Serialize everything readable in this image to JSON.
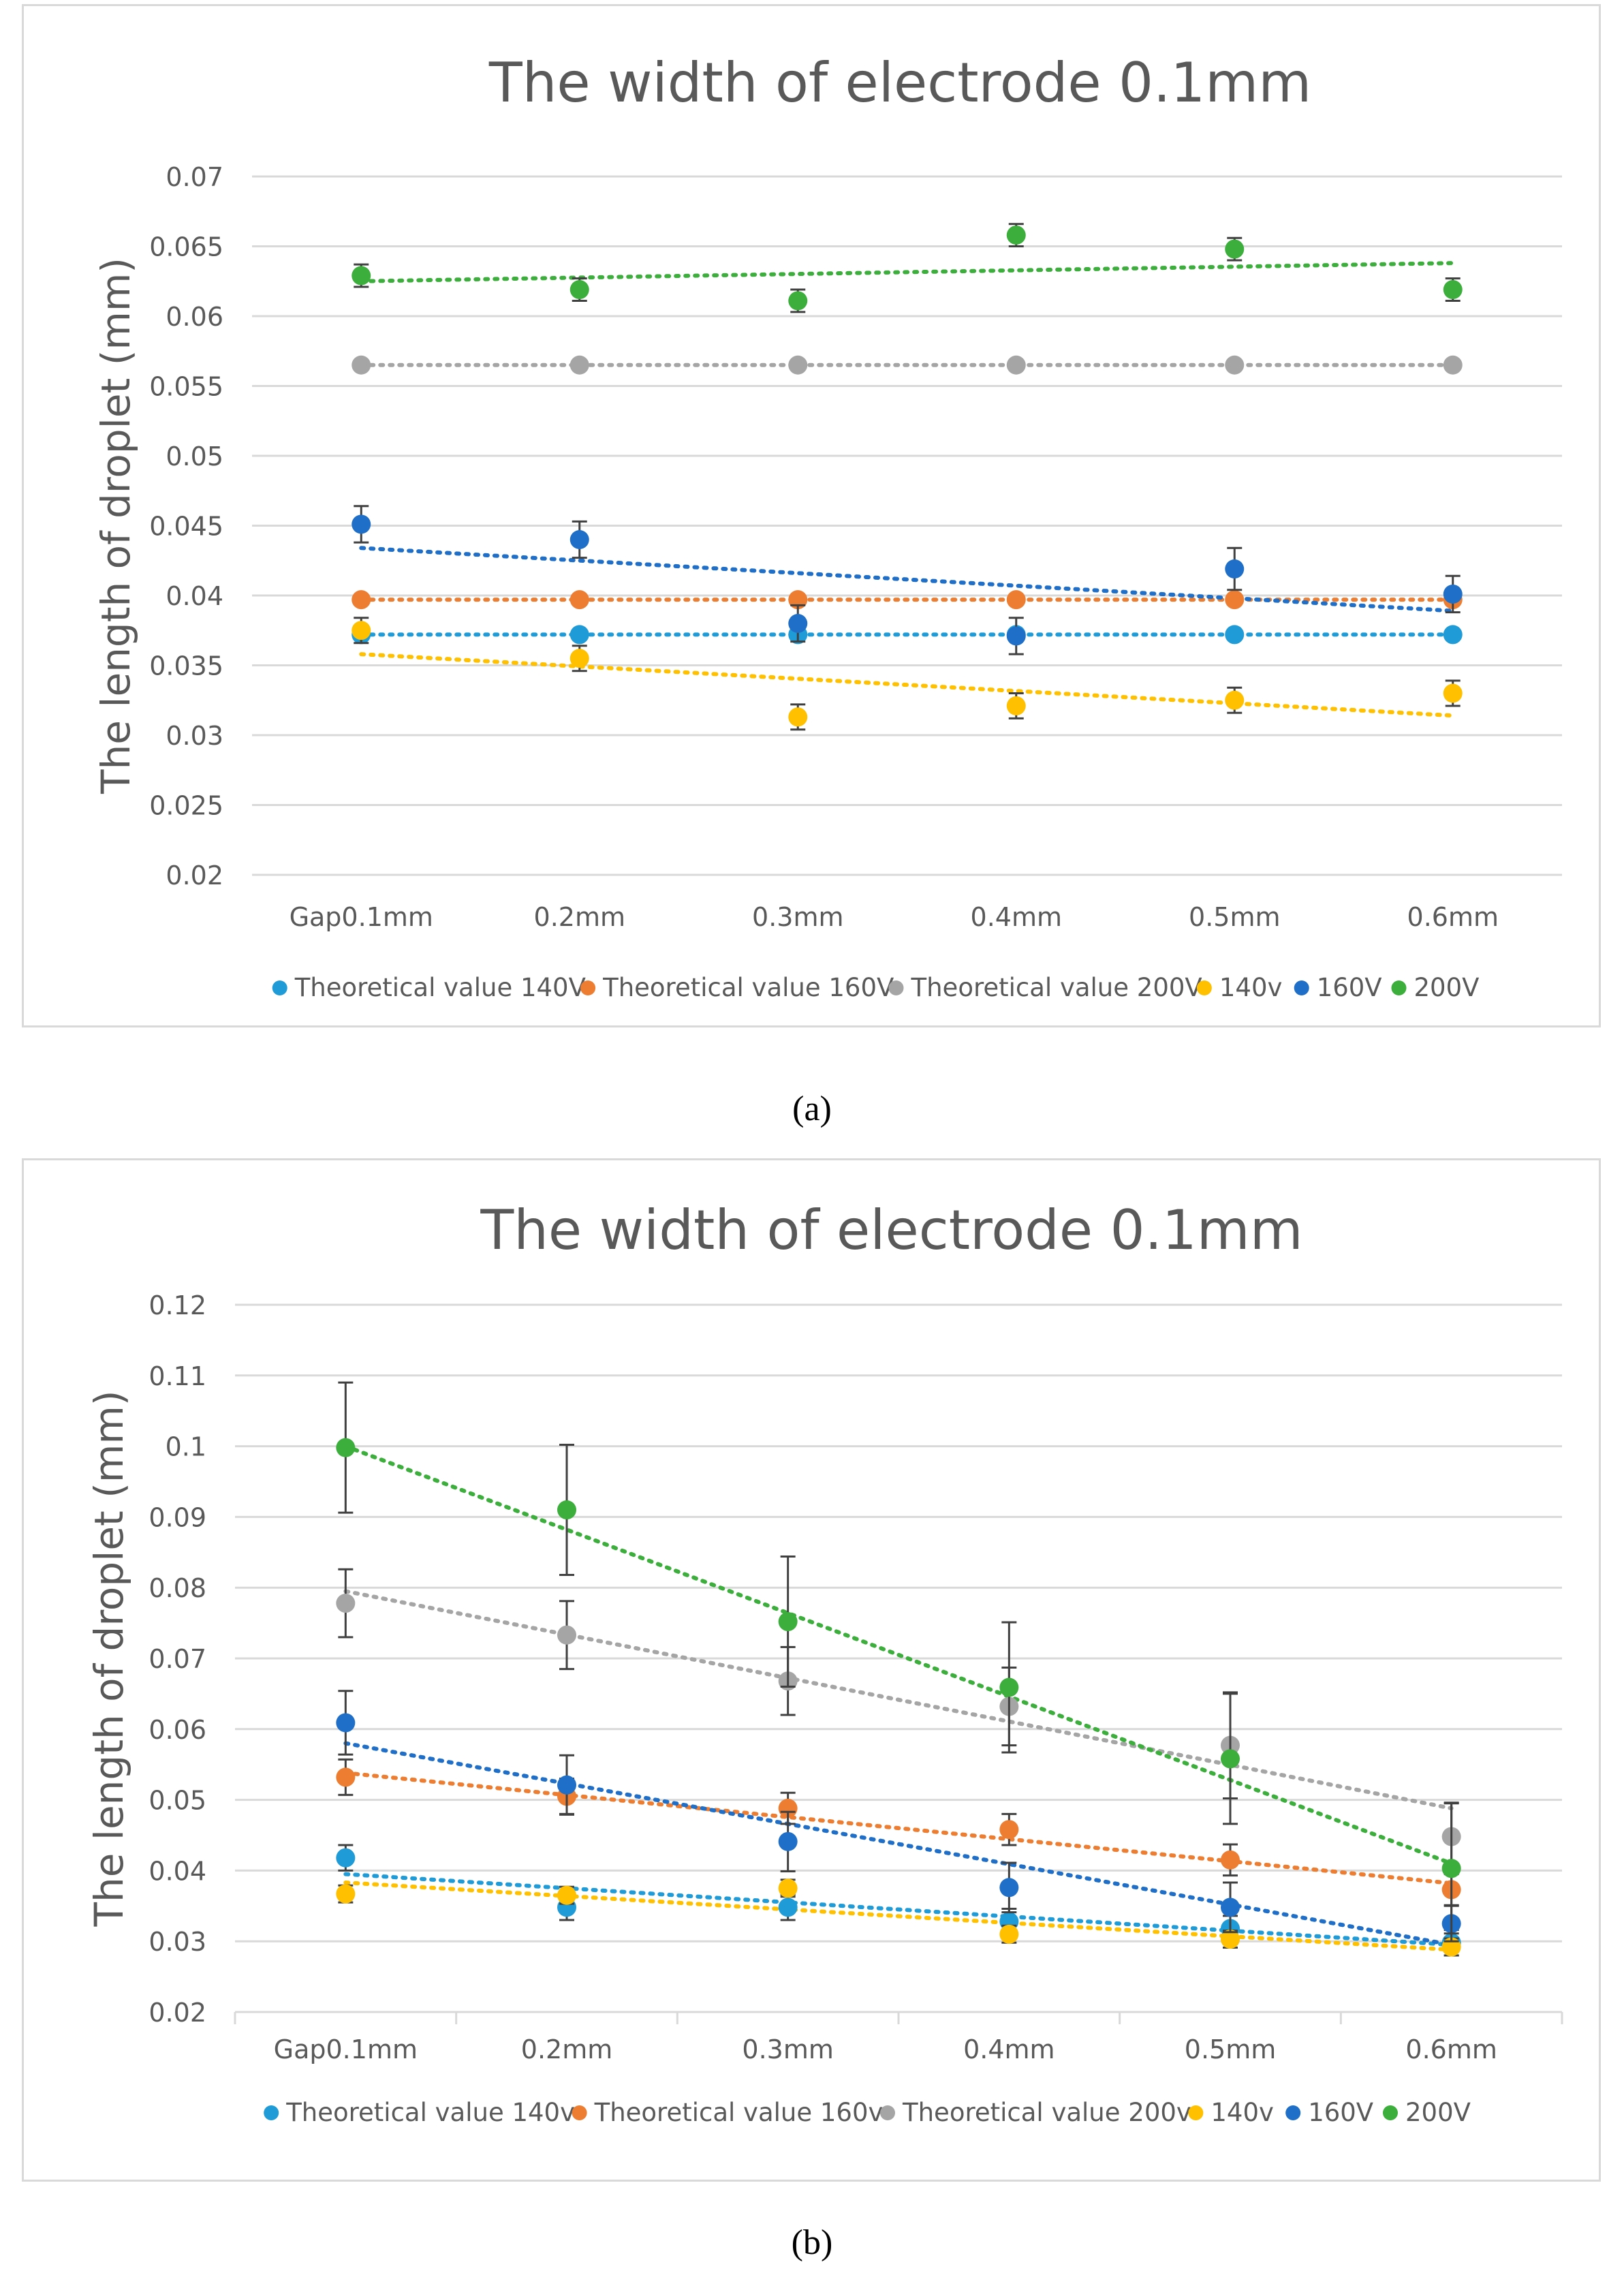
{
  "chart_data": [
    {
      "type": "scatter",
      "panel": "a",
      "caption": "(a)",
      "title": "The width of electrode 0.1mm",
      "xlabel": "",
      "ylabel": "The length of droplet (mm)",
      "categories": [
        "Gap0.1mm",
        "0.2mm",
        "0.3mm",
        "0.4mm",
        "0.5mm",
        "0.6mm"
      ],
      "ylim": [
        0.02,
        0.07
      ],
      "yticks": [
        0.02,
        0.025,
        0.03,
        0.035,
        0.04,
        0.045,
        0.05,
        0.055,
        0.06,
        0.065,
        0.07
      ],
      "ytick_labels": [
        "0.02",
        "0.025",
        "0.03",
        "0.035",
        "0.04",
        "0.045",
        "0.05",
        "0.055",
        "0.06",
        "0.065",
        "0.07"
      ],
      "grid": true,
      "legend_position": "bottom",
      "series": [
        {
          "name": "Theoretical value 140V",
          "color": "#1f9bd7",
          "values": [
            0.0372,
            0.0372,
            0.0372,
            0.0372,
            0.0372,
            0.0372
          ],
          "errors": null,
          "trend": [
            0.0372,
            0.0372
          ]
        },
        {
          "name": "Theoretical value 160V",
          "color": "#ed7d31",
          "values": [
            0.0397,
            0.0397,
            0.0397,
            0.0397,
            0.0397,
            0.0397
          ],
          "errors": null,
          "trend": [
            0.0397,
            0.0397
          ]
        },
        {
          "name": "Theoretical value 200V",
          "color": "#a5a5a5",
          "values": [
            0.0565,
            0.0565,
            0.0565,
            0.0565,
            0.0565,
            0.0565
          ],
          "errors": null,
          "trend": [
            0.0565,
            0.0565
          ]
        },
        {
          "name": "140v",
          "color": "#ffc000",
          "values": [
            0.0375,
            0.0355,
            0.0313,
            0.0321,
            0.0325,
            0.033
          ],
          "errors": [
            0.0009,
            0.0009,
            0.0009,
            0.0009,
            0.0009,
            0.0009
          ],
          "trend": [
            0.0358,
            0.0314
          ]
        },
        {
          "name": "160V",
          "color": "#1f6fc8",
          "values": [
            0.0451,
            0.044,
            0.038,
            0.0371,
            0.0419,
            0.0401
          ],
          "errors": [
            0.0013,
            0.0013,
            0.0013,
            0.0013,
            0.0015,
            0.0013
          ],
          "trend": [
            0.0434,
            0.0389
          ]
        },
        {
          "name": "200V",
          "color": "#3cae3c",
          "values": [
            0.0629,
            0.0619,
            0.0611,
            0.0658,
            0.0648,
            0.0619
          ],
          "errors": [
            0.0008,
            0.0008,
            0.0008,
            0.0008,
            0.0008,
            0.0008
          ],
          "trend": [
            0.0625,
            0.0638
          ]
        }
      ]
    },
    {
      "type": "scatter",
      "panel": "b",
      "caption": "(b)",
      "title": "The width of electrode 0.1mm",
      "xlabel": "",
      "ylabel": "The length of droplet (mm)",
      "categories": [
        "Gap0.1mm",
        "0.2mm",
        "0.3mm",
        "0.4mm",
        "0.5mm",
        "0.6mm"
      ],
      "ylim": [
        0.02,
        0.12
      ],
      "yticks": [
        0.02,
        0.03,
        0.04,
        0.05,
        0.06,
        0.07,
        0.08,
        0.09,
        0.1,
        0.11,
        0.12
      ],
      "ytick_labels": [
        "0.02",
        "0.03",
        "0.04",
        "0.05",
        "0.06",
        "0.07",
        "0.08",
        "0.09",
        "0.1",
        "0.11",
        "0.12"
      ],
      "grid": true,
      "legend_position": "bottom",
      "series": [
        {
          "name": "Theoretical value 140v",
          "color": "#1f9bd7",
          "values": [
            0.0418,
            0.0348,
            0.0348,
            0.0328,
            0.0318,
            0.0298
          ],
          "errors": [
            0.0018,
            0.0018,
            0.0018,
            0.0018,
            0.0018,
            0.0018
          ],
          "trend": [
            0.0395,
            0.0295
          ]
        },
        {
          "name": "Theoretical value 160v",
          "color": "#ed7d31",
          "values": [
            0.0532,
            0.0505,
            0.0488,
            0.0458,
            0.0415,
            0.0373
          ],
          "errors": [
            0.0025,
            0.0025,
            0.0022,
            0.0022,
            0.0022,
            0.0022
          ],
          "trend": [
            0.0538,
            0.0382
          ]
        },
        {
          "name": "Theoretical value 200v",
          "color": "#a5a5a5",
          "values": [
            0.0778,
            0.0733,
            0.0668,
            0.0632,
            0.0577,
            0.0448
          ],
          "errors": [
            0.0048,
            0.0048,
            0.0048,
            0.0055,
            0.0075,
            0.0048
          ],
          "trend": [
            0.0795,
            0.0488
          ]
        },
        {
          "name": "140v",
          "color": "#ffc000",
          "values": [
            0.0367,
            0.0365,
            0.0375,
            0.031,
            0.0303,
            0.0292
          ],
          "errors": [
            0.0012,
            0.0012,
            0.0012,
            0.0012,
            0.0012,
            0.0012
          ],
          "trend": [
            0.0383,
            0.0288
          ]
        },
        {
          "name": "160V",
          "color": "#1f6fc8",
          "values": [
            0.0609,
            0.0521,
            0.0441,
            0.0376,
            0.0348,
            0.0325
          ],
          "errors": [
            0.0045,
            0.0042,
            0.0042,
            0.0035,
            0.0035,
            0.0025
          ],
          "trend": [
            0.058,
            0.0295
          ]
        },
        {
          "name": "200V",
          "color": "#3cae3c",
          "values": [
            0.0998,
            0.091,
            0.0752,
            0.0659,
            0.0558,
            0.0403
          ],
          "errors": [
            0.0092,
            0.0092,
            0.0092,
            0.0092,
            0.0092,
            0.0092
          ],
          "trend": [
            0.1,
            0.041
          ]
        }
      ]
    }
  ]
}
